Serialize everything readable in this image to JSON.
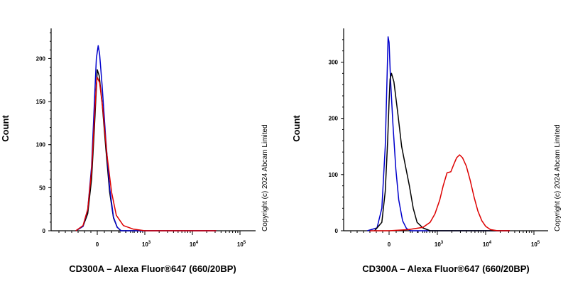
{
  "copyright": "Copyright (c) 2024 Abcam Limited",
  "chart_data": [
    {
      "type": "line",
      "xlabel": "CD300A – Alexa Fluor®647 (660/20BP)",
      "ylabel": "Count",
      "ylim": [
        0,
        235
      ],
      "y_ticks": [
        0,
        50,
        100,
        150,
        200
      ],
      "x_ticks": [
        {
          "base": "0",
          "exp": ""
        },
        {
          "base": "10",
          "exp": "3"
        },
        {
          "base": "10",
          "exp": "4"
        },
        {
          "base": "10",
          "exp": "5"
        }
      ],
      "grid": false,
      "series": [
        {
          "color": "#000000",
          "points": [
            [
              -0.45,
              0
            ],
            [
              -0.3,
              5
            ],
            [
              -0.2,
              20
            ],
            [
              -0.12,
              60
            ],
            [
              -0.06,
              120
            ],
            [
              -0.02,
              165
            ],
            [
              0.0,
              187
            ],
            [
              0.04,
              180
            ],
            [
              0.1,
              150
            ],
            [
              0.18,
              95
            ],
            [
              0.26,
              45
            ],
            [
              0.34,
              15
            ],
            [
              0.42,
              4
            ],
            [
              0.5,
              0
            ],
            [
              2.5,
              0
            ]
          ]
        },
        {
          "color": "#0000cc",
          "points": [
            [
              -0.45,
              0
            ],
            [
              -0.3,
              5
            ],
            [
              -0.2,
              25
            ],
            [
              -0.12,
              75
            ],
            [
              -0.06,
              150
            ],
            [
              -0.02,
              200
            ],
            [
              0.02,
              215
            ],
            [
              0.05,
              205
            ],
            [
              0.1,
              170
            ],
            [
              0.18,
              105
            ],
            [
              0.26,
              50
            ],
            [
              0.34,
              16
            ],
            [
              0.42,
              4
            ],
            [
              0.5,
              0
            ],
            [
              2.5,
              0
            ]
          ]
        },
        {
          "color": "#dd0000",
          "points": [
            [
              -0.45,
              0
            ],
            [
              -0.3,
              6
            ],
            [
              -0.2,
              25
            ],
            [
              -0.12,
              70
            ],
            [
              -0.06,
              130
            ],
            [
              -0.02,
              170
            ],
            [
              0.0,
              178
            ],
            [
              0.05,
              172
            ],
            [
              0.12,
              140
            ],
            [
              0.2,
              90
            ],
            [
              0.3,
              45
            ],
            [
              0.4,
              18
            ],
            [
              0.55,
              6
            ],
            [
              0.75,
              2
            ],
            [
              1.0,
              0
            ],
            [
              2.5,
              0
            ]
          ]
        }
      ]
    },
    {
      "type": "line",
      "xlabel": "CD300A – Alexa Fluor®647 (660/20BP)",
      "ylabel": "Count",
      "ylim": [
        0,
        360
      ],
      "y_ticks": [
        0,
        100,
        200,
        300
      ],
      "x_ticks": [
        {
          "base": "0",
          "exp": ""
        },
        {
          "base": "10",
          "exp": "3"
        },
        {
          "base": "10",
          "exp": "4"
        },
        {
          "base": "10",
          "exp": "5"
        }
      ],
      "grid": false,
      "series": [
        {
          "color": "#0000cc",
          "points": [
            [
              -0.45,
              0
            ],
            [
              -0.25,
              5
            ],
            [
              -0.15,
              40
            ],
            [
              -0.08,
              150
            ],
            [
              -0.04,
              280
            ],
            [
              -0.02,
              345
            ],
            [
              0.0,
              335
            ],
            [
              0.03,
              270
            ],
            [
              0.08,
              190
            ],
            [
              0.14,
              110
            ],
            [
              0.2,
              55
            ],
            [
              0.28,
              18
            ],
            [
              0.36,
              4
            ],
            [
              0.45,
              0
            ],
            [
              2.5,
              0
            ]
          ]
        },
        {
          "color": "#000000",
          "points": [
            [
              -0.3,
              0
            ],
            [
              -0.15,
              15
            ],
            [
              -0.08,
              70
            ],
            [
              -0.03,
              160
            ],
            [
              0.0,
              230
            ],
            [
              0.02,
              270
            ],
            [
              0.05,
              280
            ],
            [
              0.1,
              265
            ],
            [
              0.18,
              210
            ],
            [
              0.26,
              150
            ],
            [
              0.34,
              115
            ],
            [
              0.42,
              80
            ],
            [
              0.5,
              40
            ],
            [
              0.58,
              15
            ],
            [
              0.7,
              5
            ],
            [
              0.85,
              0
            ],
            [
              2.5,
              0
            ]
          ]
        },
        {
          "color": "#dd0000",
          "points": [
            [
              -0.4,
              0
            ],
            [
              0.0,
              0
            ],
            [
              0.4,
              2
            ],
            [
              0.7,
              6
            ],
            [
              0.85,
              15
            ],
            [
              0.95,
              30
            ],
            [
              1.05,
              55
            ],
            [
              1.12,
              80
            ],
            [
              1.2,
              103
            ],
            [
              1.28,
              105
            ],
            [
              1.34,
              118
            ],
            [
              1.4,
              130
            ],
            [
              1.46,
              135
            ],
            [
              1.52,
              130
            ],
            [
              1.6,
              115
            ],
            [
              1.68,
              90
            ],
            [
              1.76,
              60
            ],
            [
              1.84,
              35
            ],
            [
              1.92,
              18
            ],
            [
              2.0,
              8
            ],
            [
              2.1,
              2
            ],
            [
              2.25,
              0
            ],
            [
              2.5,
              0
            ]
          ]
        }
      ]
    }
  ]
}
